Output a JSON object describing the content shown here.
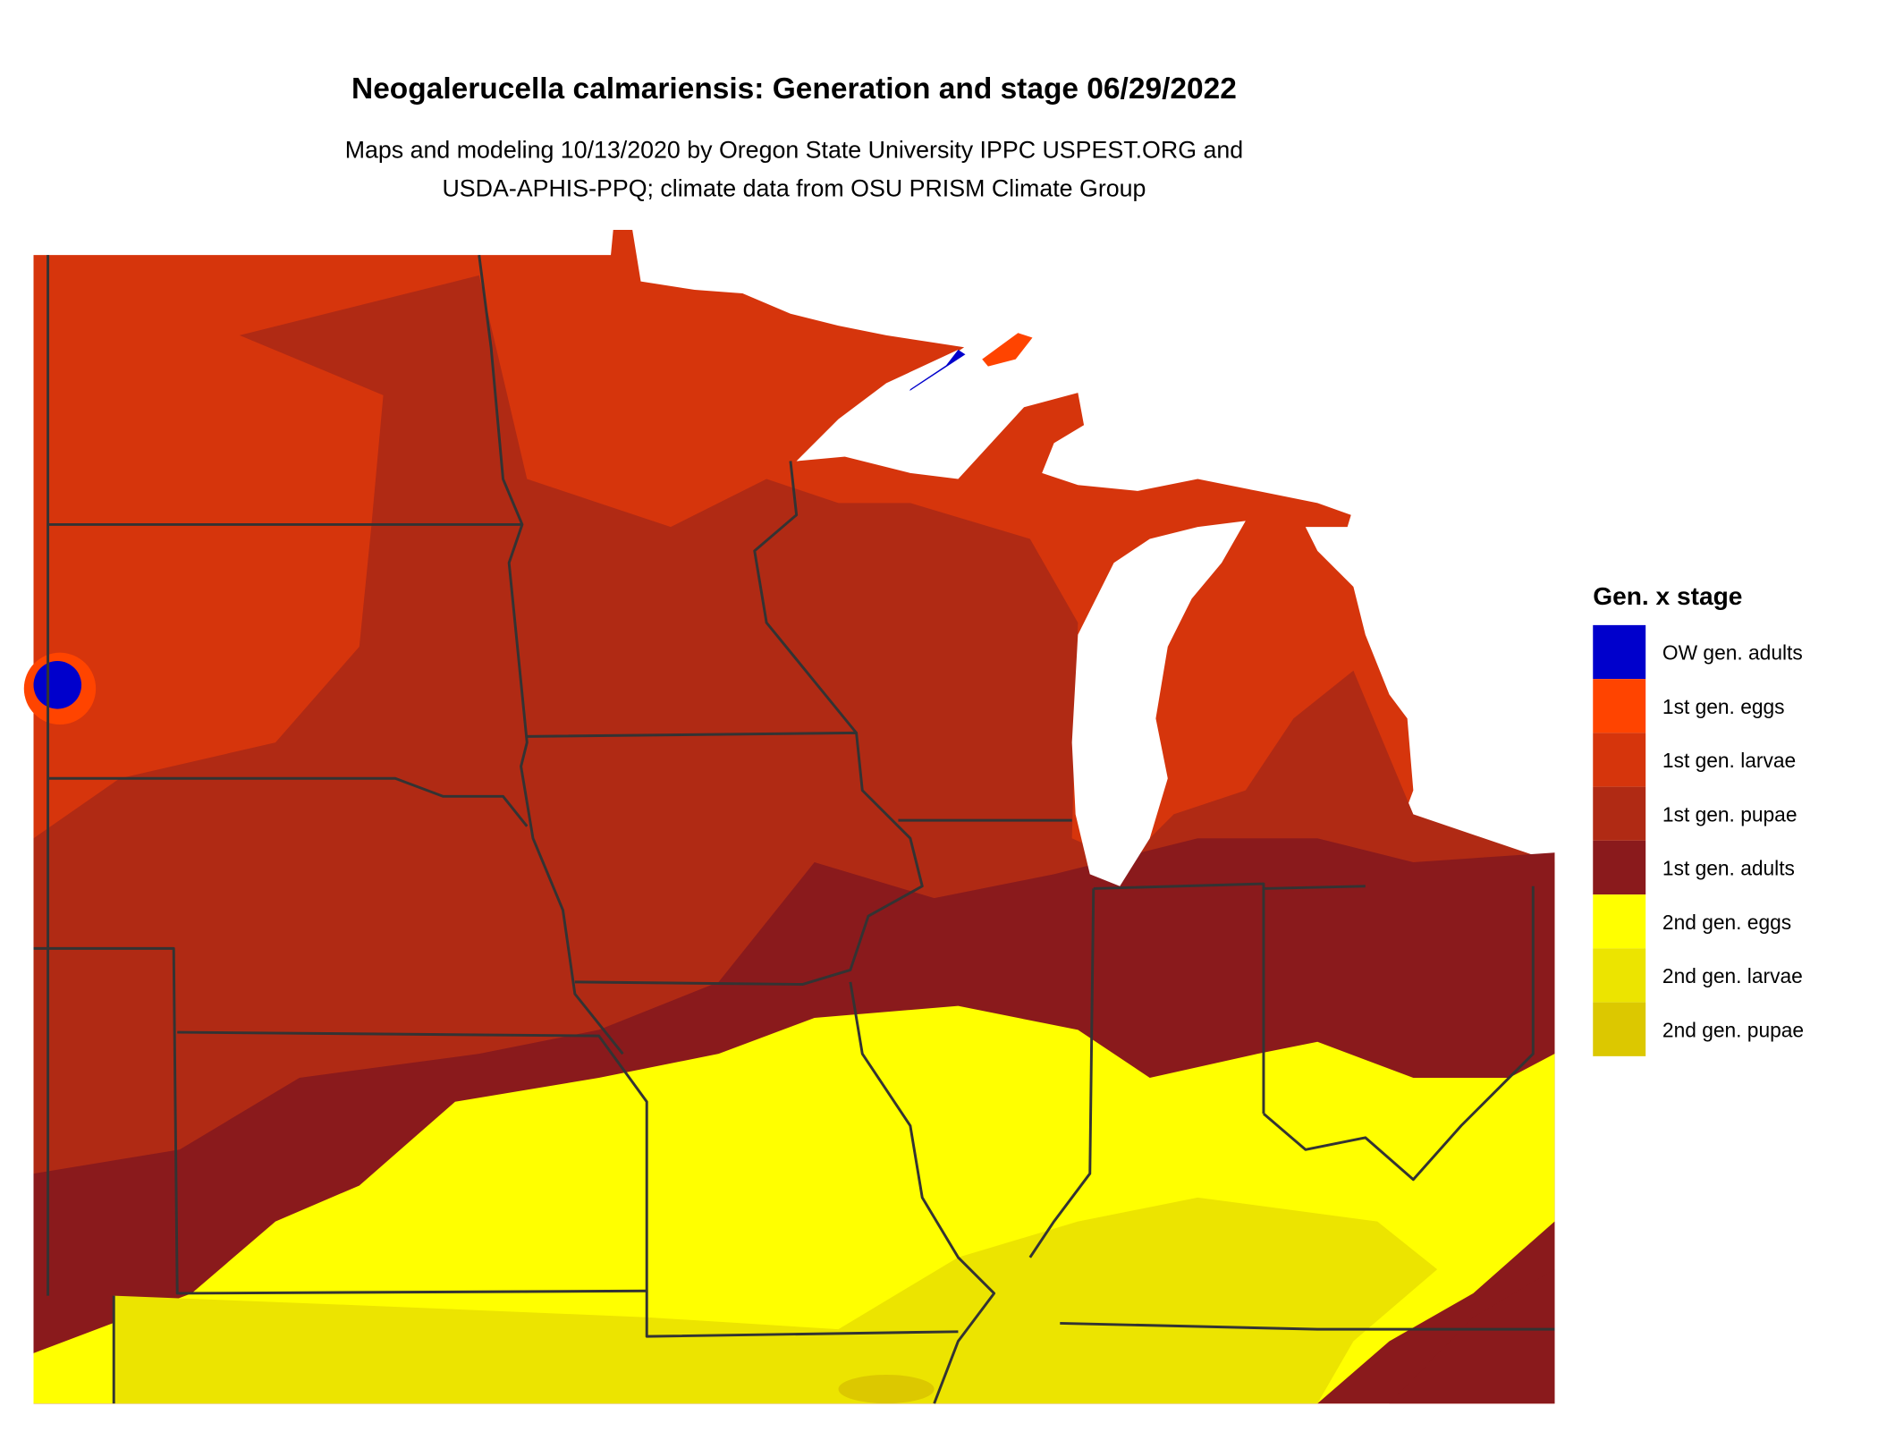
{
  "title": "Neogalerucella calmariensis: Generation and stage 06/29/2022",
  "subtitle": [
    "Maps and modeling 10/13/2020 by Oregon State University IPPC USPEST.ORG and",
    "USDA-APHIS-PPQ; climate data from OSU PRISM Climate Group"
  ],
  "legend": {
    "title": "Gen. x stage",
    "items": [
      {
        "label": "OW gen. adults",
        "color": "#0000cc"
      },
      {
        "label": "1st gen. eggs",
        "color": "#ff4400"
      },
      {
        "label": "1st gen. larvae",
        "color": "#d6350c"
      },
      {
        "label": "1st gen. pupae",
        "color": "#b02a14"
      },
      {
        "label": "1st gen. adults",
        "color": "#8a1a1c"
      },
      {
        "label": "2nd gen. eggs",
        "color": "#ffff00"
      },
      {
        "label": "2nd gen. larvae",
        "color": "#ece400"
      },
      {
        "label": "2nd gen. pupae",
        "color": "#dcc800"
      }
    ]
  }
}
